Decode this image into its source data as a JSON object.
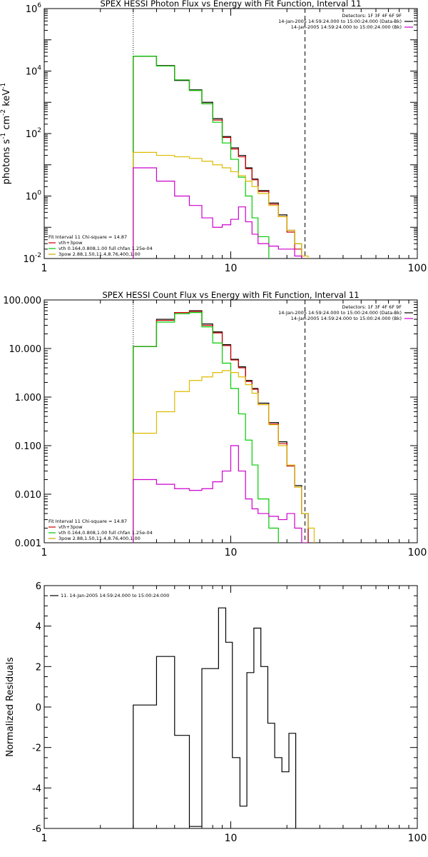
{
  "chart_data": [
    {
      "type": "line",
      "title": "SPEX HESSI Photon Flux vs Energy with Fit Function, Interval 11",
      "ylabel_parts": [
        "photons s",
        "-1",
        " cm",
        "-2",
        " keV",
        "-1"
      ],
      "xscale": "log",
      "yscale": "log",
      "xlim": [
        1,
        100
      ],
      "ylim": [
        0.01,
        1000000
      ],
      "xticks": [
        {
          "v": 1,
          "t": "1"
        },
        {
          "v": 10,
          "t": "10"
        },
        {
          "v": 100,
          "t": "100"
        }
      ],
      "yticks": [
        {
          "v": 0.01,
          "base": "10",
          "exp": "-2"
        },
        {
          "v": 1,
          "base": "10",
          "exp": "0"
        },
        {
          "v": 100,
          "base": "10",
          "exp": "2"
        },
        {
          "v": 10000,
          "base": "10",
          "exp": "4"
        },
        {
          "v": 1000000,
          "base": "10",
          "exp": "6"
        }
      ],
      "vlines": [
        {
          "x": 3,
          "style": "dotted"
        },
        {
          "x": 25,
          "style": "dashed"
        }
      ],
      "legend_top": [
        {
          "text": "Detectors: 1F 3F 4F 6F 9F",
          "color": ""
        },
        {
          "text": "14-Jan-2005 14:59:24.000 to 15:00:24.000 (Data-Bk)",
          "color": "#000000"
        },
        {
          "text": "14-Jan-2005 14:59:24.000 to 15:00:24.000 (Bk)",
          "color": "#cc00cc"
        }
      ],
      "legend_bottom": [
        {
          "text": "Fit Interval 11   Chi-square = 14.87",
          "color": ""
        },
        {
          "text": "vth+3pow",
          "color": "#cc0000"
        },
        {
          "text": "vth 0.164,0.808,1.00  full chfan 1.25e-04",
          "color": "#00cc00"
        },
        {
          "text": "3pow 2.88,1.50,11.4,8.76,400,1.00",
          "color": "#ccaa00"
        }
      ],
      "edges": [
        3,
        4,
        5,
        6,
        7,
        8,
        9,
        10,
        11,
        12,
        13,
        14,
        16,
        18,
        20,
        22,
        24,
        26,
        28,
        30
      ],
      "series": [
        {
          "color": "#000000",
          "values": [
            30000,
            15000,
            5000,
            2500,
            1000,
            300,
            80,
            35,
            20,
            8,
            3.5,
            1.5,
            0.6,
            0.25,
            0.08,
            0.03,
            null,
            null,
            null
          ]
        },
        {
          "color": "#cc0000",
          "values": [
            30000,
            14500,
            5200,
            2400,
            900,
            270,
            75,
            32,
            18,
            7.5,
            3.3,
            1.4,
            0.55,
            0.22,
            0.07,
            0.02,
            0.009,
            0.006,
            null
          ]
        },
        {
          "color": "#00cc00",
          "values": [
            30000,
            14500,
            5200,
            2400,
            900,
            230,
            50,
            15,
            4,
            1,
            0.2,
            0.05,
            null,
            null,
            null,
            null,
            null,
            null,
            null
          ]
        },
        {
          "color": "#ddbb00",
          "values": [
            25,
            20,
            18,
            16,
            13,
            10,
            8,
            6,
            4.5,
            3,
            2,
            1.2,
            0.5,
            0.22,
            0.08,
            0.03,
            0.012,
            null,
            null
          ]
        },
        {
          "color": "#cc00cc",
          "values": [
            8,
            3,
            1,
            0.5,
            0.2,
            0.1,
            0.12,
            0.18,
            0.45,
            0.15,
            0.06,
            0.03,
            0.025,
            0.02,
            0.02,
            0.012,
            null,
            null,
            null
          ]
        }
      ]
    },
    {
      "type": "line",
      "title": "SPEX HESSI Count Flux vs Energy with Fit Function, Interval 11",
      "xscale": "log",
      "yscale": "log",
      "xlim": [
        1,
        100
      ],
      "ylim": [
        0.001,
        100
      ],
      "xticks": [
        {
          "v": 1,
          "t": "1"
        },
        {
          "v": 10,
          "t": "10"
        },
        {
          "v": 100,
          "t": "100"
        }
      ],
      "yticks": [
        {
          "v": 0.001,
          "t": "0.001"
        },
        {
          "v": 0.01,
          "t": "0.010"
        },
        {
          "v": 0.1,
          "t": "0.100"
        },
        {
          "v": 1,
          "t": "1.000"
        },
        {
          "v": 10,
          "t": "10.000"
        },
        {
          "v": 100,
          "t": "100.000"
        }
      ],
      "vlines": [
        {
          "x": 3,
          "style": "dotted"
        },
        {
          "x": 25,
          "style": "dashed"
        }
      ],
      "legend_top": [
        {
          "text": "Detectors: 1F 3F 4F 6F 9F",
          "color": ""
        },
        {
          "text": "14-Jan-2005 14:59:24.000 to 15:00:24.000 (Data-Bk)",
          "color": "#000000"
        },
        {
          "text": "14-Jan-2005 14:59:24.000 to 15:00:24.000 (Bk)",
          "color": "#cc00cc"
        }
      ],
      "legend_bottom": [
        {
          "text": "Fit Interval 11   Chi-square = 14.87",
          "color": ""
        },
        {
          "text": "vth+3pow",
          "color": "#cc0000"
        },
        {
          "text": "vth 0.164,0.808,1.00  full chfan 1.25e-04",
          "color": "#00cc00"
        },
        {
          "text": "3pow 2.88,1.50,11.4,8.76,400,1.00",
          "color": "#ccaa00"
        }
      ],
      "edges": [
        3,
        4,
        5,
        6,
        7,
        8,
        9,
        10,
        11,
        12,
        13,
        14,
        16,
        18,
        20,
        22,
        24,
        26,
        28,
        30
      ],
      "series": [
        {
          "color": "#000000",
          "values": [
            11,
            40,
            55,
            60,
            32,
            22,
            12,
            6,
            4.2,
            2.2,
            1.5,
            0.75,
            0.3,
            0.12,
            0.04,
            0.015,
            0.004,
            null,
            null
          ]
        },
        {
          "color": "#cc0000",
          "values": [
            11,
            38,
            55,
            58,
            30,
            21,
            11.5,
            5.8,
            4,
            2.1,
            1.45,
            0.7,
            0.28,
            0.11,
            0.038,
            0.014,
            0.004,
            null,
            null
          ]
        },
        {
          "color": "#00cc00",
          "values": [
            11,
            35,
            52,
            55,
            28,
            13,
            5,
            1.5,
            0.45,
            0.13,
            0.04,
            0.008,
            0.002,
            null,
            null,
            null,
            null,
            null,
            null
          ]
        },
        {
          "color": "#ddbb00",
          "values": [
            0.18,
            0.5,
            1.3,
            2.2,
            2.6,
            3.2,
            3.5,
            3.2,
            2.6,
            1.8,
            1.2,
            0.7,
            0.27,
            0.1,
            0.04,
            0.014,
            0.004,
            0.002,
            null
          ]
        },
        {
          "color": "#cc00cc",
          "values": [
            0.02,
            0.016,
            0.013,
            0.012,
            0.013,
            0.018,
            0.03,
            0.1,
            0.03,
            0.008,
            0.005,
            0.004,
            0.0035,
            0.003,
            0.004,
            0.002,
            0.001,
            null,
            null
          ]
        }
      ]
    },
    {
      "type": "line",
      "ylabel": "Normalized Residuals",
      "xscale": "log",
      "yscale": "linear",
      "xlim": [
        1,
        100
      ],
      "ylim": [
        -6,
        6
      ],
      "xticks": [
        {
          "v": 1,
          "t": "1"
        },
        {
          "v": 10,
          "t": "10"
        },
        {
          "v": 100,
          "t": "100"
        }
      ],
      "yticks": [
        {
          "v": -6,
          "t": "-6"
        },
        {
          "v": -4,
          "t": "-4"
        },
        {
          "v": -2,
          "t": "-2"
        },
        {
          "v": 0,
          "t": "0"
        },
        {
          "v": 2,
          "t": "2"
        },
        {
          "v": 4,
          "t": "4"
        },
        {
          "v": 6,
          "t": "6"
        }
      ],
      "legend_top_left": [
        {
          "text": "11. 14-Jan-2005 14:59:24.000 to 15:00:24.000",
          "color": "#000000"
        }
      ],
      "edges": [
        3,
        3.5,
        4,
        4.5,
        5,
        6,
        7,
        8,
        8.6,
        9.4,
        10.2,
        11.2,
        12.2,
        13.3,
        14.5,
        15.8,
        17.2,
        18.8,
        20.5,
        22.3,
        24.3,
        25.5
      ],
      "series": [
        {
          "color": "#000000",
          "values": [
            0.1,
            0.1,
            2.5,
            2.5,
            -1.4,
            -5.9,
            1.9,
            1.9,
            4.9,
            3.2,
            -2.5,
            -4.9,
            1.7,
            3.9,
            2.0,
            -0.8,
            -2.5,
            -3.2,
            -1.3,
            null,
            null
          ]
        }
      ]
    }
  ]
}
